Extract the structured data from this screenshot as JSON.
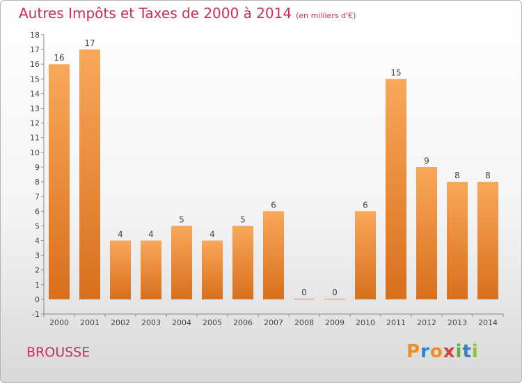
{
  "header": {
    "title": "Autres Impôts et Taxes de 2000 à 2014",
    "unit_note": "(en milliers d'€)"
  },
  "footer": {
    "commune": "BROUSSE",
    "logo_text": "Proxiti"
  },
  "colors": {
    "title": "#cc2e52",
    "bar_light": "#f9a85a",
    "bar_dark": "#d86f1c",
    "logo_letters": [
      "#f28c28",
      "#2f82c8",
      "#f28c28",
      "#d63f3f",
      "#5fae3a",
      "#2f82c8",
      "#8fc43a"
    ]
  },
  "chart_data": {
    "type": "bar",
    "categories": [
      "2000",
      "2001",
      "2002",
      "2003",
      "2004",
      "2005",
      "2006",
      "2007",
      "2008",
      "2009",
      "2010",
      "2011",
      "2012",
      "2013",
      "2014"
    ],
    "values": [
      16,
      17,
      4,
      4,
      5,
      4,
      5,
      6,
      0,
      0,
      6,
      15,
      9,
      8,
      8
    ],
    "ylim": [
      -1,
      18
    ],
    "yticks": [
      -1,
      0,
      1,
      2,
      3,
      4,
      5,
      6,
      7,
      8,
      9,
      10,
      11,
      12,
      13,
      14,
      15,
      16,
      17,
      18
    ],
    "grid": false,
    "data_labels": true
  }
}
